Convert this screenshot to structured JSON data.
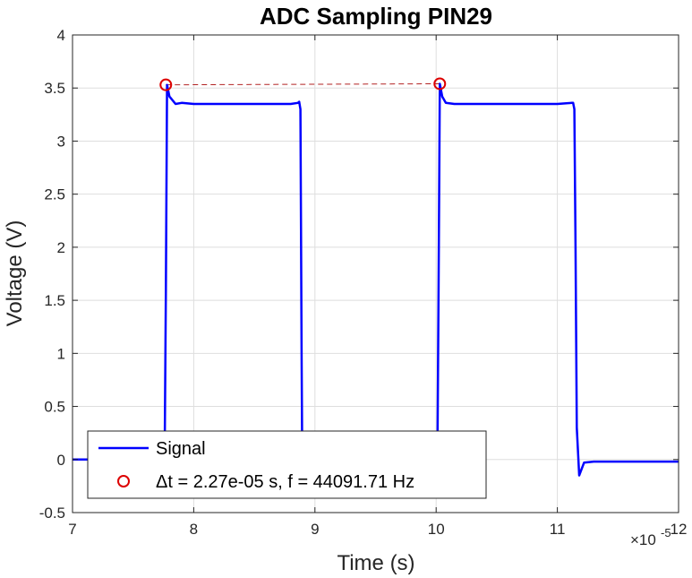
{
  "chart_data": {
    "type": "line",
    "title": "ADC Sampling PIN29",
    "xlabel": "Time (s)",
    "ylabel": "Voltage (V)",
    "x_exponent_label": "×10",
    "x_exponent_power": "-5",
    "xlim": [
      7,
      12
    ],
    "ylim": [
      -0.5,
      4
    ],
    "x_ticks": [
      7,
      8,
      9,
      10,
      11,
      12
    ],
    "x_tick_labels": [
      "7",
      "8",
      "9",
      "10",
      "11",
      "12"
    ],
    "y_ticks": [
      -0.5,
      0,
      0.5,
      1,
      1.5,
      2,
      2.5,
      3,
      3.5,
      4
    ],
    "y_tick_labels": [
      "-0.5",
      "0",
      "0.5",
      "1",
      "1.5",
      "2",
      "2.5",
      "3",
      "3.5",
      "4"
    ],
    "grid": true,
    "legend_position": "bottom-left",
    "series": [
      {
        "name": "Signal",
        "color": "#0000ff",
        "x": [
          7.0,
          7.76,
          7.77,
          7.78,
          7.8,
          7.85,
          7.9,
          8.0,
          8.2,
          8.4,
          8.6,
          8.8,
          8.86,
          8.87,
          8.88,
          8.89,
          8.895,
          10.01,
          10.02,
          10.03,
          10.05,
          10.08,
          10.15,
          10.3,
          10.5,
          10.7,
          10.9,
          11.0,
          11.12,
          11.13,
          11.14,
          11.15,
          11.16,
          11.18,
          11.22,
          11.3,
          11.5,
          11.7,
          11.9,
          12.0
        ],
        "y": [
          0.0,
          0.0,
          1.6,
          3.53,
          3.42,
          3.35,
          3.36,
          3.35,
          3.35,
          3.35,
          3.35,
          3.35,
          3.36,
          3.37,
          3.3,
          1.0,
          0.0,
          0.0,
          1.6,
          3.54,
          3.42,
          3.36,
          3.35,
          3.35,
          3.35,
          3.35,
          3.35,
          3.35,
          3.36,
          3.36,
          3.3,
          2.0,
          0.3,
          -0.15,
          -0.03,
          -0.02,
          -0.02,
          -0.02,
          -0.02,
          -0.02
        ]
      },
      {
        "name": "Δt = 2.27e-05 s, f = 44091.71 Hz",
        "color": "#ff0000",
        "marker": "circle",
        "x": [
          7.77,
          10.03
        ],
        "y": [
          3.53,
          3.54
        ]
      }
    ]
  },
  "colors": {
    "signal": "#0000ff",
    "peak_marker": "#dd0000",
    "period_line": "#b22222",
    "grid": "#dedede",
    "axis": "#262626"
  }
}
